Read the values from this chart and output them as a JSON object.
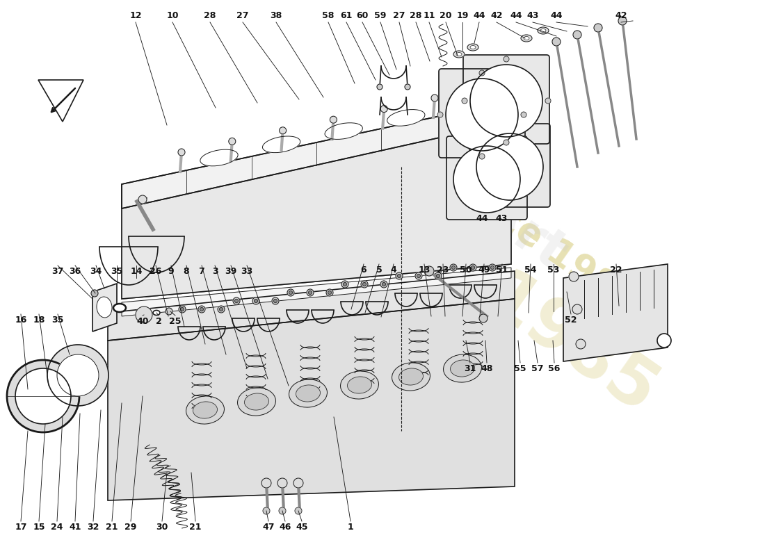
{
  "bg_color": "#ffffff",
  "line_color": "#1a1a1a",
  "watermark_color": "#d4c875",
  "fig_w": 11.0,
  "fig_h": 8.0,
  "dpi": 100,
  "labels_top": [
    [
      "12",
      195,
      22
    ],
    [
      "10",
      248,
      22
    ],
    [
      "28",
      302,
      22
    ],
    [
      "27",
      349,
      22
    ],
    [
      "38",
      397,
      22
    ],
    [
      "58",
      472,
      22
    ],
    [
      "61",
      498,
      22
    ],
    [
      "60",
      521,
      22
    ],
    [
      "59",
      547,
      22
    ],
    [
      "27",
      574,
      22
    ],
    [
      "28",
      598,
      22
    ],
    [
      "11",
      617,
      22
    ],
    [
      "20",
      641,
      22
    ],
    [
      "19",
      665,
      22
    ],
    [
      "44",
      689,
      22
    ],
    [
      "42",
      714,
      22
    ],
    [
      "44",
      742,
      22
    ],
    [
      "43",
      766,
      22
    ],
    [
      "44",
      800,
      22
    ],
    [
      "42",
      893,
      22
    ]
  ],
  "labels_mid_left": [
    [
      "37",
      83,
      390
    ],
    [
      "36",
      108,
      390
    ],
    [
      "34",
      138,
      390
    ],
    [
      "35",
      168,
      390
    ],
    [
      "14",
      196,
      390
    ],
    [
      "26",
      224,
      390
    ],
    [
      "9",
      246,
      390
    ],
    [
      "8",
      268,
      390
    ],
    [
      "7",
      290,
      390
    ],
    [
      "3",
      309,
      390
    ],
    [
      "39",
      332,
      390
    ],
    [
      "33",
      355,
      390
    ]
  ],
  "labels_mid_right": [
    [
      "6",
      523,
      388
    ],
    [
      "5",
      545,
      388
    ],
    [
      "4",
      566,
      388
    ],
    [
      "13",
      610,
      388
    ],
    [
      "23",
      637,
      388
    ],
    [
      "50",
      670,
      388
    ],
    [
      "49",
      696,
      388
    ],
    [
      "51",
      722,
      388
    ],
    [
      "54",
      763,
      388
    ],
    [
      "53",
      796,
      388
    ],
    [
      "22",
      886,
      388
    ]
  ],
  "labels_left2": [
    [
      "16",
      30,
      460
    ],
    [
      "18",
      56,
      460
    ],
    [
      "35",
      83,
      460
    ],
    [
      "40",
      205,
      462
    ],
    [
      "2",
      228,
      462
    ],
    [
      "25",
      252,
      462
    ]
  ],
  "labels_right2": [
    [
      "31",
      676,
      530
    ],
    [
      "48",
      700,
      530
    ],
    [
      "55",
      748,
      530
    ],
    [
      "57",
      773,
      530
    ],
    [
      "56",
      797,
      530
    ],
    [
      "52",
      821,
      460
    ]
  ],
  "labels_bottom": [
    [
      "17",
      30,
      758
    ],
    [
      "15",
      56,
      758
    ],
    [
      "24",
      82,
      758
    ],
    [
      "41",
      108,
      758
    ],
    [
      "32",
      134,
      758
    ],
    [
      "21",
      161,
      758
    ],
    [
      "29",
      188,
      758
    ],
    [
      "30",
      233,
      758
    ],
    [
      "21",
      281,
      758
    ],
    [
      "47",
      386,
      758
    ],
    [
      "46",
      410,
      758
    ],
    [
      "45",
      434,
      758
    ],
    [
      "1",
      504,
      758
    ]
  ],
  "labels_flange": [
    [
      "44",
      693,
      315
    ],
    [
      "43",
      721,
      315
    ]
  ]
}
